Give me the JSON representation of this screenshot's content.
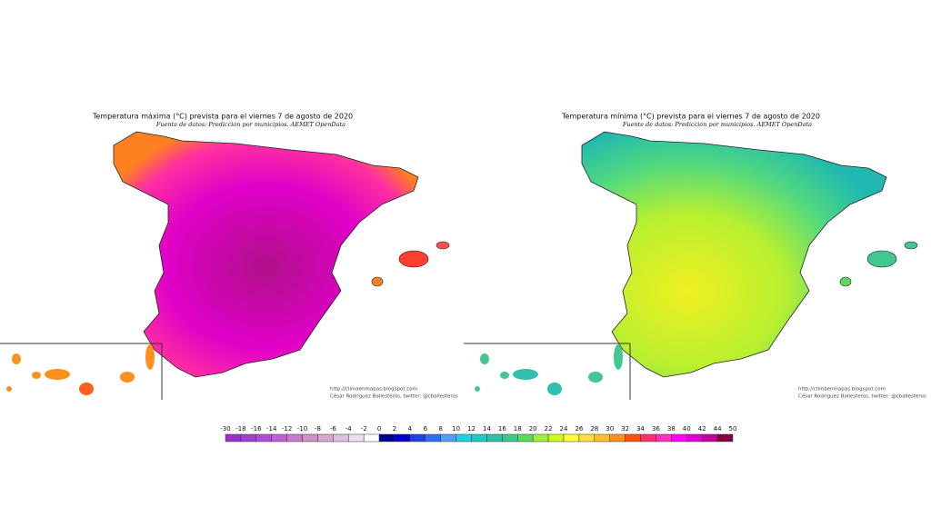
{
  "maps": [
    {
      "title": "Temperatura máxima (°C) prevista para el viernes 7 de agosto de 2020",
      "subtitle": "Fuente de datos: Predicción por municipios. AEMET OpenData",
      "credit_url": "http://climaenmapas.blogspot.com",
      "credit_author": "César Rodríguez Ballesteros, twitter: @cballesteros"
    },
    {
      "title": "Temperatura mínima (°C) prevista para el viernes 7 de agosto de 2020",
      "subtitle": "Fuente de datos: Predicción por municipios. AEMET OpenData",
      "credit_url": "http://climaenmapas.blogspot.com",
      "credit_author": "César Rodríguez Ballesteros, twitter: @cballesteros"
    }
  ],
  "colorbar": {
    "ticks": [
      -30,
      -18,
      -16,
      -14,
      -12,
      -10,
      -8,
      -6,
      -4,
      -2,
      0,
      2,
      4,
      6,
      8,
      10,
      12,
      14,
      16,
      18,
      20,
      22,
      24,
      26,
      28,
      30,
      32,
      34,
      36,
      38,
      40,
      42,
      44,
      50
    ],
    "colors": [
      "#9b30c8",
      "#a040d0",
      "#b050d8",
      "#c060d8",
      "#c878d0",
      "#d090c8",
      "#d8a8d0",
      "#e0c0e0",
      "#ece0ec",
      "#ffffff",
      "#00008b",
      "#0000cd",
      "#1e40e0",
      "#3070f0",
      "#50a0f0",
      "#20d0e0",
      "#20c8c8",
      "#30c0b0",
      "#40c890",
      "#60d860",
      "#a0f040",
      "#d0f820",
      "#ffff40",
      "#ffe040",
      "#ffc030",
      "#ff9020",
      "#ff5010",
      "#ff3070",
      "#ff30c0",
      "#ff00ff",
      "#e000d0",
      "#c000a0",
      "#800040"
    ]
  }
}
